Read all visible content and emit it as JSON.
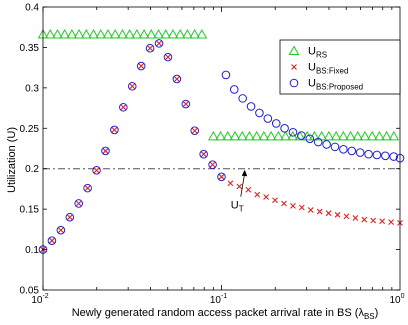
{
  "chart_data": {
    "type": "scatter",
    "title": "",
    "xlabel": "Newly generated random access packet arrival rate in BS (λ",
    "xlabel_sub": "BS",
    "xlabel_close": ")",
    "ylabel": "Utilization (U)",
    "xscale": "log",
    "xlim": [
      0.01,
      1
    ],
    "ylim": [
      0.05,
      0.4
    ],
    "x_ticks": [
      {
        "value": 0.01,
        "base": "10",
        "exp": "-2"
      },
      {
        "value": 0.1,
        "base": "10",
        "exp": "-1"
      },
      {
        "value": 1,
        "base": "10",
        "exp": "0"
      }
    ],
    "y_ticks": [
      {
        "value": 0.05,
        "label": "0.05"
      },
      {
        "value": 0.1,
        "label": "0.1"
      },
      {
        "value": 0.15,
        "label": "0.15"
      },
      {
        "value": 0.2,
        "label": "0.2"
      },
      {
        "value": 0.25,
        "label": "0.25"
      },
      {
        "value": 0.3,
        "label": "0.3"
      },
      {
        "value": 0.35,
        "label": "0.35"
      },
      {
        "value": 0.4,
        "label": "0.4"
      }
    ],
    "legend_placement": "top-right",
    "legend": [
      {
        "main": "U",
        "sub": "RS"
      },
      {
        "main": "U",
        "sub": "BS:Fixed"
      },
      {
        "main": "U",
        "sub": "BS:Proposed"
      }
    ],
    "annotation": {
      "main": "U",
      "sub": "T",
      "x": 0.135,
      "y": 0.2
    },
    "threshold": {
      "value": 0.2,
      "style": "dash-dot",
      "color": "#555555"
    },
    "series": [
      {
        "marker": "triangle",
        "color": "#22cc22",
        "points": [
          [
            0.01,
            0.366
          ],
          [
            0.01098,
            0.366
          ],
          [
            0.01205,
            0.366
          ],
          [
            0.01322,
            0.366
          ],
          [
            0.01451,
            0.366
          ],
          [
            0.01593,
            0.366
          ],
          [
            0.01748,
            0.366
          ],
          [
            0.01919,
            0.366
          ],
          [
            0.02106,
            0.366
          ],
          [
            0.02312,
            0.366
          ],
          [
            0.02537,
            0.366
          ],
          [
            0.02785,
            0.366
          ],
          [
            0.03057,
            0.366
          ],
          [
            0.03355,
            0.366
          ],
          [
            0.03683,
            0.366
          ],
          [
            0.04042,
            0.366
          ],
          [
            0.04437,
            0.366
          ],
          [
            0.0487,
            0.366
          ],
          [
            0.05345,
            0.366
          ],
          [
            0.05867,
            0.366
          ],
          [
            0.0644,
            0.366
          ],
          [
            0.07068,
            0.366
          ],
          [
            0.07758,
            0.366
          ],
          [
            0.09,
            0.24
          ],
          [
            0.0988,
            0.24
          ],
          [
            0.1084,
            0.24
          ],
          [
            0.119,
            0.24
          ],
          [
            0.1306,
            0.24
          ],
          [
            0.1434,
            0.24
          ],
          [
            0.1574,
            0.24
          ],
          [
            0.1727,
            0.24
          ],
          [
            0.1896,
            0.24
          ],
          [
            0.2081,
            0.24
          ],
          [
            0.2284,
            0.24
          ],
          [
            0.2507,
            0.24
          ],
          [
            0.2752,
            0.24
          ],
          [
            0.302,
            0.24
          ],
          [
            0.3315,
            0.24
          ],
          [
            0.3639,
            0.24
          ],
          [
            0.3994,
            0.24
          ],
          [
            0.4384,
            0.24
          ],
          [
            0.4812,
            0.24
          ],
          [
            0.5282,
            0.24
          ],
          [
            0.5797,
            0.24
          ],
          [
            0.6363,
            0.24
          ],
          [
            0.6984,
            0.24
          ],
          [
            0.7666,
            0.24
          ],
          [
            0.8414,
            0.24
          ],
          [
            0.9236,
            0.24
          ]
        ]
      },
      {
        "marker": "cross",
        "color": "#dd2222",
        "points": [
          [
            0.01,
            0.1
          ],
          [
            0.01122,
            0.111
          ],
          [
            0.01259,
            0.124
          ],
          [
            0.01413,
            0.14
          ],
          [
            0.01585,
            0.157
          ],
          [
            0.01778,
            0.176
          ],
          [
            0.01995,
            0.198
          ],
          [
            0.02239,
            0.222
          ],
          [
            0.02512,
            0.248
          ],
          [
            0.02818,
            0.276
          ],
          [
            0.03162,
            0.302
          ],
          [
            0.03548,
            0.327
          ],
          [
            0.03981,
            0.349
          ],
          [
            0.04467,
            0.355
          ],
          [
            0.05012,
            0.338
          ],
          [
            0.05623,
            0.311
          ],
          [
            0.0631,
            0.28
          ],
          [
            0.07079,
            0.247
          ],
          [
            0.07943,
            0.218
          ],
          [
            0.08913,
            0.205
          ],
          [
            0.1,
            0.19
          ],
          [
            0.1122,
            0.182
          ],
          [
            0.1259,
            0.178
          ],
          [
            0.1413,
            0.174
          ],
          [
            0.1585,
            0.168
          ],
          [
            0.1778,
            0.165
          ],
          [
            0.1995,
            0.161
          ],
          [
            0.2239,
            0.157
          ],
          [
            0.2512,
            0.154
          ],
          [
            0.2818,
            0.152
          ],
          [
            0.3162,
            0.149
          ],
          [
            0.3548,
            0.147
          ],
          [
            0.3981,
            0.145
          ],
          [
            0.4467,
            0.143
          ],
          [
            0.5012,
            0.141
          ],
          [
            0.5623,
            0.139
          ],
          [
            0.631,
            0.137
          ],
          [
            0.7079,
            0.136
          ],
          [
            0.7943,
            0.135
          ],
          [
            0.8913,
            0.134
          ],
          [
            1.0,
            0.133
          ]
        ]
      },
      {
        "marker": "circle",
        "color": "#2222cc",
        "points": [
          [
            0.01,
            0.1
          ],
          [
            0.01122,
            0.111
          ],
          [
            0.01259,
            0.124
          ],
          [
            0.01413,
            0.14
          ],
          [
            0.01585,
            0.157
          ],
          [
            0.01778,
            0.176
          ],
          [
            0.01995,
            0.198
          ],
          [
            0.02239,
            0.222
          ],
          [
            0.02512,
            0.248
          ],
          [
            0.02818,
            0.276
          ],
          [
            0.03162,
            0.302
          ],
          [
            0.03548,
            0.327
          ],
          [
            0.03981,
            0.349
          ],
          [
            0.04467,
            0.355
          ],
          [
            0.05012,
            0.338
          ],
          [
            0.05623,
            0.311
          ],
          [
            0.0631,
            0.28
          ],
          [
            0.07079,
            0.247
          ],
          [
            0.07943,
            0.218
          ],
          [
            0.08913,
            0.205
          ],
          [
            0.1,
            0.19
          ],
          [
            0.1059,
            0.316
          ],
          [
            0.1179,
            0.298
          ],
          [
            0.1314,
            0.287
          ],
          [
            0.1464,
            0.277
          ],
          [
            0.1631,
            0.269
          ],
          [
            0.1818,
            0.262
          ],
          [
            0.2026,
            0.256
          ],
          [
            0.2257,
            0.25
          ],
          [
            0.2515,
            0.245
          ],
          [
            0.2803,
            0.241
          ],
          [
            0.3124,
            0.237
          ],
          [
            0.3481,
            0.233
          ],
          [
            0.3879,
            0.23
          ],
          [
            0.4322,
            0.227
          ],
          [
            0.4817,
            0.224
          ],
          [
            0.5367,
            0.222
          ],
          [
            0.5981,
            0.22
          ],
          [
            0.6665,
            0.218
          ],
          [
            0.7427,
            0.217
          ],
          [
            0.8277,
            0.216
          ],
          [
            0.9223,
            0.215
          ],
          [
            1.0,
            0.213
          ]
        ]
      }
    ]
  }
}
